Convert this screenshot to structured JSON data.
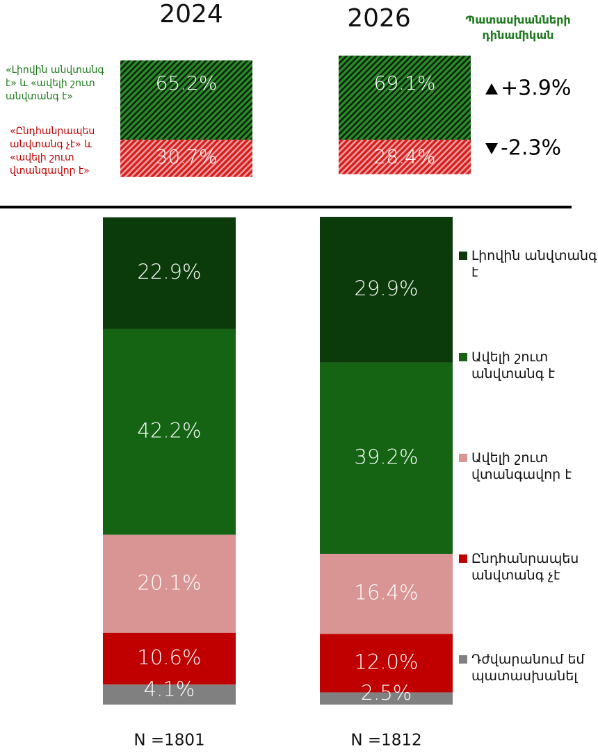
{
  "chart_data": [
    {
      "type": "summary",
      "title": "Պատասխանների դինամիկան",
      "categories": [
        "2024",
        "2026"
      ],
      "series": [
        {
          "name": "«Լիովին անվտանգ է» և «ավելի շուտ անվտանգ է»",
          "color": "#1b7a1b",
          "values": [
            65.2,
            69.1
          ],
          "value_labels": [
            "65.2%",
            "69.1%"
          ]
        },
        {
          "name": "«Ընդհանրապես անվտանգ չէ» և «ավելի շուտ վտանգավոր է»",
          "color": "#c00000",
          "values": [
            30.7,
            28.4
          ],
          "value_labels": [
            "30.7%",
            "28.4%"
          ]
        }
      ],
      "changes": [
        3.9,
        -2.3
      ],
      "change_labels": [
        "+3.9%",
        "-2.3%"
      ]
    },
    {
      "type": "stacked_bar",
      "categories": [
        "N =1801",
        "N =1812"
      ],
      "series": [
        {
          "name": "Լիովին անվտանգ է",
          "color": "#0b3b0b",
          "values": [
            22.9,
            29.9
          ],
          "value_labels": [
            "22.9%",
            "29.9%"
          ]
        },
        {
          "name": "Ավելի շուտ անվտանգ է",
          "color": "#146414",
          "values": [
            42.2,
            39.2
          ],
          "value_labels": [
            "42.2%",
            "39.2%"
          ]
        },
        {
          "name": "Ավելի շուտ վտանգավոր է",
          "color": "#d99594",
          "values": [
            20.1,
            16.4
          ],
          "value_labels": [
            "20.1%",
            "16.4%"
          ]
        },
        {
          "name": "Ընդհանրապես անվտանգ չէ",
          "color": "#c00000",
          "values": [
            10.6,
            12.0
          ],
          "value_labels": [
            "10.6%",
            "12.0%"
          ]
        },
        {
          "name": "Դժվարանում եմ պատասխանել",
          "color": "#808080",
          "values": [
            4.1,
            2.5
          ],
          "value_labels": [
            "4.1%",
            "2.5%"
          ]
        }
      ]
    }
  ]
}
